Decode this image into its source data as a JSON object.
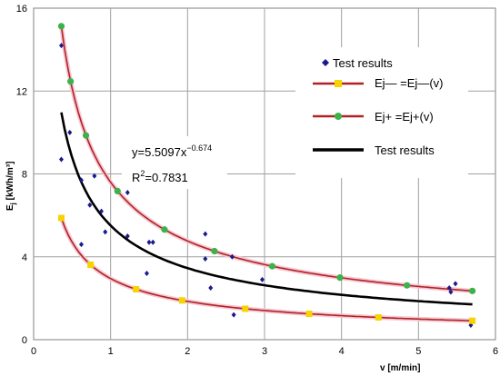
{
  "chart_data": {
    "type": "scatter",
    "xlabel": "v [m/min]",
    "ylabel": "E",
    "ylabel_sub": "j",
    "ylabel_unit": " [kWh/m³]",
    "xlim": [
      0,
      6
    ],
    "ylim": [
      0,
      16
    ],
    "xticks": [
      "0",
      "1",
      "2",
      "3",
      "4",
      "5",
      "6"
    ],
    "yticks": [
      "0",
      "4",
      "8",
      "12",
      "16"
    ],
    "grid": true,
    "annotation": {
      "eq_base": "y=5.5097x",
      "eq_exp": "−0.674",
      "r2_label": "R",
      "r2_exp": "2",
      "r2_value": "=0.7831"
    },
    "legend": {
      "placement": "top-right",
      "entries": [
        {
          "label": "Test results",
          "style": "diamond",
          "color": "#1a1a8c"
        },
        {
          "label": "Ej— =Ej—(v)",
          "style": "line-square",
          "color": "#b22222",
          "marker_color": "#f5d400"
        },
        {
          "label": "Ej+ =Ej+(v)",
          "style": "line-circle",
          "color": "#b22222",
          "marker_color": "#3cb34a"
        },
        {
          "label": "Test results",
          "style": "thick-line",
          "color": "#000000"
        }
      ]
    },
    "series": [
      {
        "name": "Test results",
        "style": "diamond",
        "color": "#1a1a8c",
        "points": [
          [
            0.36,
            14.2
          ],
          [
            0.36,
            8.7
          ],
          [
            0.47,
            10.0
          ],
          [
            0.62,
            7.7
          ],
          [
            0.62,
            4.6
          ],
          [
            0.73,
            6.5
          ],
          [
            0.79,
            7.9
          ],
          [
            0.88,
            6.2
          ],
          [
            0.93,
            5.2
          ],
          [
            1.22,
            7.1
          ],
          [
            1.22,
            5.0
          ],
          [
            1.47,
            3.2
          ],
          [
            1.5,
            4.7
          ],
          [
            1.55,
            4.7
          ],
          [
            2.23,
            5.1
          ],
          [
            2.23,
            3.9
          ],
          [
            2.3,
            2.5
          ],
          [
            2.58,
            4.0
          ],
          [
            2.6,
            1.2
          ],
          [
            2.97,
            2.9
          ],
          [
            5.4,
            2.5
          ],
          [
            5.42,
            2.3
          ],
          [
            5.48,
            2.7
          ],
          [
            5.68,
            0.7
          ]
        ]
      },
      {
        "name": "Ej— =Ej—(v)",
        "style": "line-square",
        "color": "#b22222",
        "marker_color": "#f5d400",
        "coef": 2.95,
        "exp": -0.674,
        "markers_x": [
          0.36,
          0.74,
          1.33,
          1.93,
          2.75,
          3.58,
          4.48,
          5.7
        ]
      },
      {
        "name": "Ej+ =Ej+(v)",
        "style": "line-circle",
        "color": "#b22222",
        "marker_color": "#3cb34a",
        "coef": 7.6,
        "exp": -0.674,
        "markers_x": [
          0.36,
          0.48,
          0.68,
          1.09,
          1.7,
          2.35,
          3.1,
          3.98,
          4.85,
          5.7
        ]
      },
      {
        "name": "Test results",
        "style": "thick-line",
        "color": "#000000",
        "coef": 5.5097,
        "exp": -0.674,
        "x_range": [
          0.36,
          5.7
        ]
      }
    ]
  }
}
